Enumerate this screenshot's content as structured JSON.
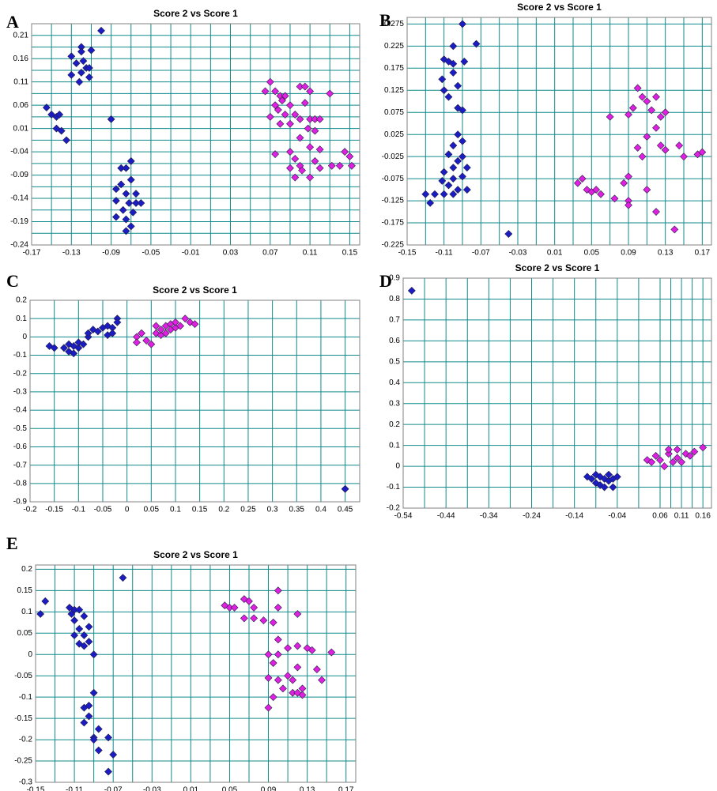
{
  "chart_data": [
    {
      "type": "scatter",
      "label": "A",
      "title": "Score 2 vs Score 1",
      "xlim": [
        -0.17,
        0.16
      ],
      "ylim": [
        -0.24,
        0.235
      ],
      "xticks": [
        -0.17,
        -0.13,
        -0.09,
        -0.05,
        -0.01,
        0.03,
        0.07,
        0.11,
        0.15
      ],
      "yticks": [
        -0.24,
        -0.19,
        -0.14,
        -0.09,
        -0.04,
        0.01,
        0.06,
        0.11,
        0.16,
        0.21
      ],
      "grid": true,
      "xminor": true,
      "yminor": true,
      "series": [
        {
          "color": "#1c1cc4",
          "x": [
            -0.1,
            -0.13,
            -0.12,
            -0.12,
            -0.11,
            -0.125,
            -0.118,
            -0.115,
            -0.12,
            -0.112,
            -0.13,
            -0.122,
            -0.112,
            -0.155,
            -0.15,
            -0.145,
            -0.142,
            -0.145,
            -0.14,
            -0.135,
            -0.09,
            -0.08,
            -0.075,
            -0.07,
            -0.085,
            -0.08,
            -0.07,
            -0.075,
            -0.065,
            -0.085,
            -0.072,
            -0.065,
            -0.06,
            -0.078,
            -0.068,
            -0.085,
            -0.075,
            -0.07,
            -0.075
          ],
          "y": [
            0.22,
            0.165,
            0.185,
            0.175,
            0.178,
            0.15,
            0.155,
            0.14,
            0.13,
            0.14,
            0.125,
            0.11,
            0.12,
            0.055,
            0.04,
            0.035,
            0.04,
            0.01,
            0.005,
            -0.015,
            0.03,
            -0.075,
            -0.075,
            -0.06,
            -0.12,
            -0.11,
            -0.1,
            -0.13,
            -0.13,
            -0.145,
            -0.15,
            -0.15,
            -0.15,
            -0.165,
            -0.17,
            -0.18,
            -0.185,
            -0.2,
            -0.21
          ]
        },
        {
          "color": "#e020e0",
          "x": [
            0.07,
            0.065,
            0.075,
            0.08,
            0.085,
            0.075,
            0.082,
            0.09,
            0.1,
            0.105,
            0.11,
            0.13,
            0.07,
            0.078,
            0.085,
            0.095,
            0.1,
            0.105,
            0.11,
            0.115,
            0.12,
            0.08,
            0.09,
            0.108,
            0.115,
            0.1,
            0.075,
            0.09,
            0.11,
            0.12,
            0.095,
            0.1,
            0.115,
            0.09,
            0.12,
            0.132,
            0.14,
            0.145,
            0.15,
            0.152,
            0.095,
            0.11,
            0.102
          ],
          "y": [
            0.11,
            0.09,
            0.09,
            0.08,
            0.08,
            0.06,
            0.07,
            0.06,
            0.1,
            0.1,
            0.09,
            0.085,
            0.035,
            0.05,
            0.04,
            0.04,
            0.03,
            0.065,
            0.03,
            0.03,
            0.03,
            0.02,
            0.02,
            0.01,
            0.005,
            -0.01,
            -0.045,
            -0.04,
            -0.03,
            -0.035,
            -0.055,
            -0.07,
            -0.06,
            -0.075,
            -0.075,
            -0.07,
            -0.07,
            -0.04,
            -0.05,
            -0.07,
            -0.095,
            -0.095,
            -0.08
          ]
        }
      ]
    },
    {
      "type": "scatter",
      "label": "B",
      "title": "Score 2 vs Score 1",
      "xlim": [
        -0.15,
        0.18
      ],
      "ylim": [
        -0.225,
        0.29
      ],
      "xticks": [
        -0.15,
        -0.11,
        -0.07,
        -0.03,
        0.01,
        0.05,
        0.09,
        0.13,
        0.17
      ],
      "yticks": [
        -0.225,
        -0.175,
        -0.125,
        -0.075,
        -0.025,
        0.025,
        0.075,
        0.125,
        0.175,
        0.225,
        0.275
      ],
      "grid": true,
      "xminor": true,
      "yminor": false,
      "series": [
        {
          "color": "#1c1cc4",
          "x": [
            -0.09,
            -0.075,
            -0.1,
            -0.11,
            -0.105,
            -0.1,
            -0.088,
            -0.112,
            -0.1,
            -0.11,
            -0.105,
            -0.095,
            -0.095,
            -0.09,
            -0.095,
            -0.09,
            -0.1,
            -0.105,
            -0.095,
            -0.09,
            -0.1,
            -0.11,
            -0.085,
            -0.09,
            -0.1,
            -0.112,
            -0.105,
            -0.095,
            -0.11,
            -0.1,
            -0.12,
            -0.085,
            -0.13,
            -0.125,
            -0.04
          ],
          "y": [
            0.275,
            0.23,
            0.225,
            0.195,
            0.19,
            0.185,
            0.19,
            0.15,
            0.165,
            0.125,
            0.11,
            0.135,
            0.085,
            0.08,
            0.025,
            0.01,
            0.0,
            -0.02,
            -0.035,
            -0.025,
            -0.05,
            -0.06,
            -0.05,
            -0.07,
            -0.075,
            -0.08,
            -0.09,
            -0.1,
            -0.11,
            -0.11,
            -0.11,
            -0.1,
            -0.11,
            -0.13,
            -0.2
          ]
        },
        {
          "color": "#e020e0",
          "x": [
            0.1,
            0.105,
            0.11,
            0.12,
            0.115,
            0.125,
            0.13,
            0.09,
            0.07,
            0.095,
            0.12,
            0.11,
            0.125,
            0.13,
            0.1,
            0.105,
            0.145,
            0.15,
            0.165,
            0.17,
            0.09,
            0.085,
            0.11,
            0.075,
            0.09,
            0.09,
            0.035,
            0.04,
            0.045,
            0.05,
            0.055,
            0.06,
            0.12,
            0.14
          ],
          "y": [
            0.13,
            0.11,
            0.1,
            0.11,
            0.08,
            0.065,
            0.075,
            0.07,
            0.065,
            0.085,
            0.04,
            0.02,
            0.0,
            -0.01,
            -0.005,
            -0.025,
            0.0,
            -0.025,
            -0.02,
            -0.015,
            -0.07,
            -0.085,
            -0.1,
            -0.12,
            -0.125,
            -0.135,
            -0.085,
            -0.075,
            -0.1,
            -0.105,
            -0.1,
            -0.11,
            -0.15,
            -0.19
          ]
        }
      ]
    },
    {
      "type": "scatter",
      "label": "C",
      "title": "Score 2 vs Score 1",
      "xlim": [
        -0.2,
        0.48
      ],
      "ylim": [
        -0.9,
        0.2
      ],
      "xticks": [
        -0.2,
        -0.15,
        -0.1,
        -0.05,
        0,
        0.05,
        0.1,
        0.15,
        0.2,
        0.25,
        0.3,
        0.35,
        0.4,
        0.45
      ],
      "yticks": [
        -0.9,
        -0.8,
        -0.7,
        -0.6,
        -0.5,
        -0.4,
        -0.3,
        -0.2,
        -0.1,
        0,
        0.1,
        0.2
      ],
      "grid": true,
      "xminor": false,
      "yminor": false,
      "series": [
        {
          "color": "#1c1cc4",
          "x": [
            -0.16,
            -0.15,
            -0.13,
            -0.12,
            -0.12,
            -0.11,
            -0.11,
            -0.1,
            -0.1,
            -0.09,
            -0.08,
            -0.08,
            -0.07,
            -0.06,
            -0.05,
            -0.04,
            -0.03,
            -0.04,
            -0.03,
            -0.02,
            -0.02,
            0.45
          ],
          "y": [
            -0.05,
            -0.06,
            -0.06,
            -0.04,
            -0.08,
            -0.05,
            -0.09,
            -0.06,
            -0.03,
            -0.04,
            0.0,
            0.02,
            0.04,
            0.03,
            0.05,
            0.06,
            0.05,
            0.01,
            0.02,
            0.1,
            0.08,
            -0.83
          ]
        },
        {
          "color": "#e020e0",
          "x": [
            0.02,
            0.02,
            0.03,
            0.04,
            0.05,
            0.06,
            0.06,
            0.07,
            0.07,
            0.08,
            0.08,
            0.09,
            0.09,
            0.1,
            0.1,
            0.11,
            0.12,
            0.13,
            0.14
          ],
          "y": [
            0.0,
            -0.03,
            0.02,
            -0.02,
            -0.04,
            0.02,
            0.06,
            0.01,
            0.04,
            0.06,
            0.02,
            0.07,
            0.04,
            0.05,
            0.08,
            0.06,
            0.1,
            0.08,
            0.07
          ]
        }
      ]
    },
    {
      "type": "scatter",
      "label": "D",
      "title": "Score 2 vs Score 1",
      "xlim": [
        -0.54,
        0.18
      ],
      "ylim": [
        -0.2,
        0.9
      ],
      "xticks": [
        -0.54,
        -0.44,
        -0.34,
        -0.24,
        -0.14,
        -0.04,
        0.06,
        0.11,
        0.16
      ],
      "yticks": [
        -0.2,
        -0.1,
        0,
        0.1,
        0.2,
        0.3,
        0.4,
        0.5,
        0.6,
        0.7,
        0.8,
        0.9
      ],
      "grid": true,
      "xminor": true,
      "yminor": false,
      "series": [
        {
          "color": "#1c1cc4",
          "x": [
            -0.52,
            -0.11,
            -0.1,
            -0.09,
            -0.09,
            -0.08,
            -0.08,
            -0.07,
            -0.07,
            -0.06,
            -0.06,
            -0.05,
            -0.05,
            -0.04
          ],
          "y": [
            0.84,
            -0.05,
            -0.06,
            -0.04,
            -0.08,
            -0.05,
            -0.09,
            -0.06,
            -0.1,
            -0.04,
            -0.07,
            -0.06,
            -0.1,
            -0.05
          ]
        },
        {
          "color": "#e020e0",
          "x": [
            0.03,
            0.04,
            0.05,
            0.06,
            0.07,
            0.08,
            0.09,
            0.1,
            0.1,
            0.11,
            0.12,
            0.13,
            0.14,
            0.16,
            0.08
          ],
          "y": [
            0.03,
            0.02,
            0.05,
            0.03,
            0.0,
            0.06,
            0.02,
            0.08,
            0.04,
            0.02,
            0.06,
            0.05,
            0.07,
            0.09,
            0.08
          ]
        }
      ]
    },
    {
      "type": "scatter",
      "label": "E",
      "title": "Score 2 vs Score 1",
      "xlim": [
        -0.15,
        0.18
      ],
      "ylim": [
        -0.3,
        0.21
      ],
      "xticks": [
        -0.15,
        -0.11,
        -0.07,
        -0.03,
        0.01,
        0.05,
        0.09,
        0.13,
        0.17
      ],
      "yticks": [
        -0.3,
        -0.25,
        -0.2,
        -0.15,
        -0.1,
        -0.05,
        0,
        0.05,
        0.1,
        0.15,
        0.2
      ],
      "grid": true,
      "xminor": true,
      "yminor": false,
      "series": [
        {
          "color": "#1c1cc4",
          "x": [
            -0.145,
            -0.14,
            -0.115,
            -0.11,
            -0.105,
            -0.113,
            -0.1,
            -0.11,
            -0.105,
            -0.11,
            -0.1,
            -0.095,
            -0.105,
            -0.1,
            -0.095,
            -0.09,
            -0.06,
            -0.09,
            -0.095,
            -0.1,
            -0.095,
            -0.1,
            -0.085,
            -0.09,
            -0.09,
            -0.075,
            -0.085,
            -0.07,
            -0.075
          ],
          "y": [
            0.095,
            0.125,
            0.11,
            0.105,
            0.105,
            0.095,
            0.09,
            0.08,
            0.06,
            0.045,
            0.045,
            0.065,
            0.025,
            0.02,
            0.03,
            0.0,
            0.18,
            -0.09,
            -0.12,
            -0.125,
            -0.145,
            -0.16,
            -0.175,
            -0.195,
            -0.2,
            -0.195,
            -0.225,
            -0.235,
            -0.275
          ]
        },
        {
          "color": "#e020e0",
          "x": [
            0.045,
            0.05,
            0.055,
            0.065,
            0.07,
            0.075,
            0.065,
            0.075,
            0.085,
            0.095,
            0.1,
            0.1,
            0.12,
            0.1,
            0.11,
            0.12,
            0.13,
            0.135,
            0.09,
            0.095,
            0.1,
            0.11,
            0.12,
            0.14,
            0.145,
            0.155,
            0.09,
            0.1,
            0.115,
            0.125,
            0.115,
            0.12,
            0.125,
            0.095,
            0.09,
            0.105
          ],
          "y": [
            0.115,
            0.11,
            0.11,
            0.13,
            0.125,
            0.11,
            0.085,
            0.085,
            0.08,
            0.075,
            0.15,
            0.11,
            0.095,
            0.035,
            0.015,
            0.02,
            0.015,
            0.01,
            0.0,
            -0.02,
            0.0,
            -0.05,
            -0.03,
            -0.035,
            -0.06,
            0.005,
            -0.055,
            -0.06,
            -0.06,
            -0.08,
            -0.09,
            -0.09,
            -0.095,
            -0.1,
            -0.125,
            -0.08
          ]
        }
      ]
    }
  ]
}
